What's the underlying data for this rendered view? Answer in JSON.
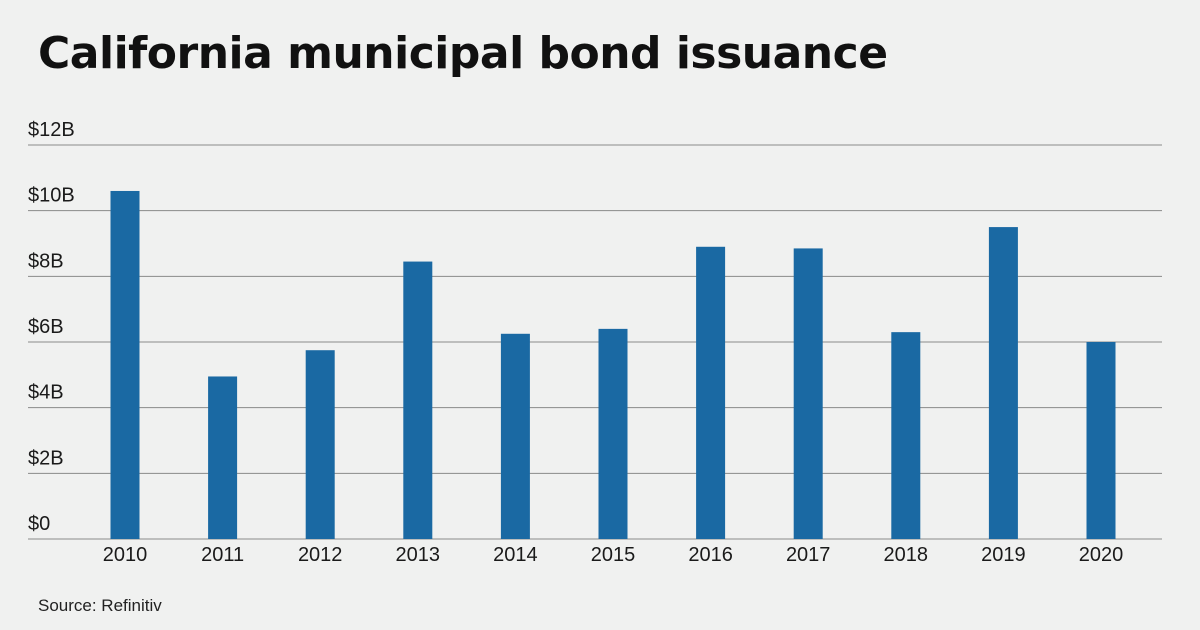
{
  "title": "California municipal bond issuance",
  "source": "Source: Refinitiv",
  "colors": {
    "background": "#f0f1f0",
    "bar": "#1a69a3",
    "grid": "#8a8a8a",
    "text": "#111111"
  },
  "chart_data": {
    "type": "bar",
    "categories": [
      "2010",
      "2011",
      "2012",
      "2013",
      "2014",
      "2015",
      "2016",
      "2017",
      "2018",
      "2019",
      "2020"
    ],
    "values": [
      10.6,
      4.95,
      5.75,
      8.45,
      6.25,
      6.4,
      8.9,
      8.85,
      6.3,
      9.5,
      6.0
    ],
    "unit": "billions USD",
    "ylim": [
      0,
      12
    ],
    "yticks": [
      {
        "value": 0,
        "label": "$0"
      },
      {
        "value": 2,
        "label": "$2B"
      },
      {
        "value": 4,
        "label": "$4B"
      },
      {
        "value": 6,
        "label": "$6B"
      },
      {
        "value": 8,
        "label": "$8B"
      },
      {
        "value": 10,
        "label": "$10B"
      },
      {
        "value": 12,
        "label": "$12B"
      }
    ],
    "title": "California municipal bond issuance",
    "xlabel": "",
    "ylabel": "",
    "grid": true,
    "legend": "none"
  }
}
